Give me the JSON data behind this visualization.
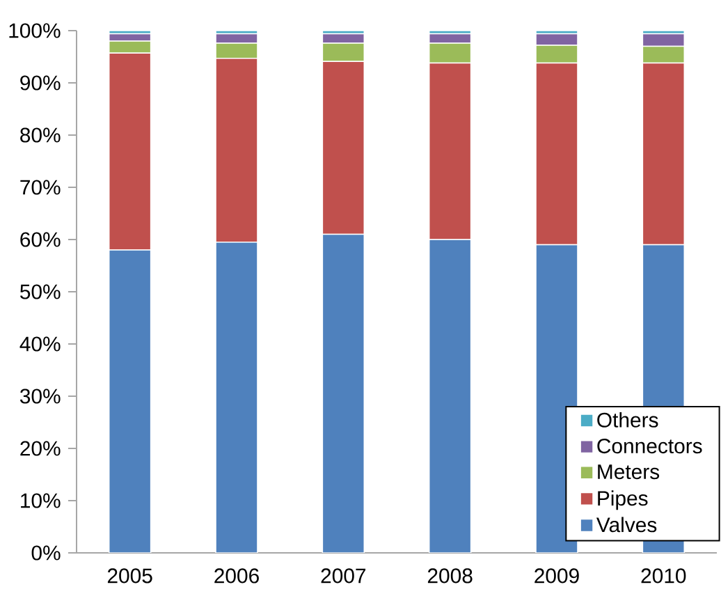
{
  "chart_data": {
    "type": "bar",
    "stacked": true,
    "categories": [
      "2005",
      "2006",
      "2007",
      "2008",
      "2009",
      "2010"
    ],
    "series": [
      {
        "name": "Valves",
        "color": "#4f81bd",
        "values": [
          58,
          59.5,
          61,
          60,
          59,
          59
        ]
      },
      {
        "name": "Pipes",
        "color": "#c0504d",
        "values": [
          37.7,
          35.2,
          33.1,
          33.8,
          34.8,
          34.8
        ]
      },
      {
        "name": "Meters",
        "color": "#9bbb59",
        "values": [
          2.3,
          2.9,
          3.5,
          3.8,
          3.4,
          3.2
        ]
      },
      {
        "name": "Connectors",
        "color": "#8064a2",
        "values": [
          1.4,
          1.8,
          1.8,
          1.8,
          2.2,
          2.4
        ]
      },
      {
        "name": "Others",
        "color": "#4bacc6",
        "values": [
          0.6,
          0.6,
          0.6,
          0.6,
          0.6,
          0.6
        ]
      }
    ],
    "ylim": [
      0,
      100
    ],
    "yticks": [
      {
        "value": 0,
        "label": "0%"
      },
      {
        "value": 10,
        "label": "10%"
      },
      {
        "value": 20,
        "label": "20%"
      },
      {
        "value": 30,
        "label": "30%"
      },
      {
        "value": 40,
        "label": "40%"
      },
      {
        "value": 50,
        "label": "50%"
      },
      {
        "value": 60,
        "label": "60%"
      },
      {
        "value": 70,
        "label": "70%"
      },
      {
        "value": 80,
        "label": "80%"
      },
      {
        "value": 90,
        "label": "90%"
      },
      {
        "value": 100,
        "label": "100%"
      }
    ],
    "legend": "bottom right",
    "grid": false
  }
}
